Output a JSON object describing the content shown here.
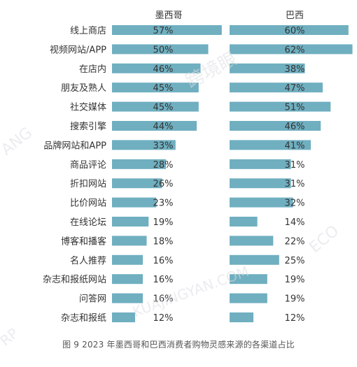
{
  "chart_data": {
    "type": "bar",
    "orientation": "horizontal",
    "categories": [
      "线上商店",
      "视频网站/APP",
      "在店内",
      "朋友及熟人",
      "社交媒体",
      "搜索引擎",
      "品牌网站和APP",
      "商品评论",
      "折扣网站",
      "比价网站",
      "在线论坛",
      "博客和播客",
      "名人推荐",
      "杂志和报纸网站",
      "问答网",
      "杂志和报纸"
    ],
    "series": [
      {
        "name": "墨西哥",
        "values": [
          57,
          50,
          46,
          45,
          45,
          44,
          33,
          28,
          26,
          23,
          19,
          18,
          16,
          16,
          16,
          12
        ],
        "labels": [
          "57%",
          "50%",
          "46%",
          "45%",
          "45%",
          "44%",
          "33%",
          "28%",
          "26%",
          "23%",
          "19%",
          "18%",
          "16%",
          "16%",
          "16%",
          "12%"
        ]
      },
      {
        "name": "巴西",
        "values": [
          60,
          62,
          38,
          47,
          51,
          46,
          41,
          31,
          31,
          32,
          14,
          22,
          25,
          19,
          19,
          12
        ],
        "labels": [
          "60%",
          "62%",
          "38%",
          "47%",
          "51%",
          "46%",
          "41%",
          "31%",
          "31%",
          "32%",
          "14%",
          "22%",
          "25%",
          "19%",
          "19%",
          "12%"
        ]
      }
    ],
    "unit": "%",
    "bar_color": "#6fafc0",
    "grid": false,
    "legend": "series titles above panels"
  },
  "caption": "图 9   2023 年墨西哥和巴西消费者购物灵感来源的各渠道占比",
  "watermark": {
    "brand_cn": "跨境眼",
    "brand_en": "KUAJINGYAN.COM",
    "fragments": [
      "ANG",
      "ECO",
      "RP"
    ]
  }
}
